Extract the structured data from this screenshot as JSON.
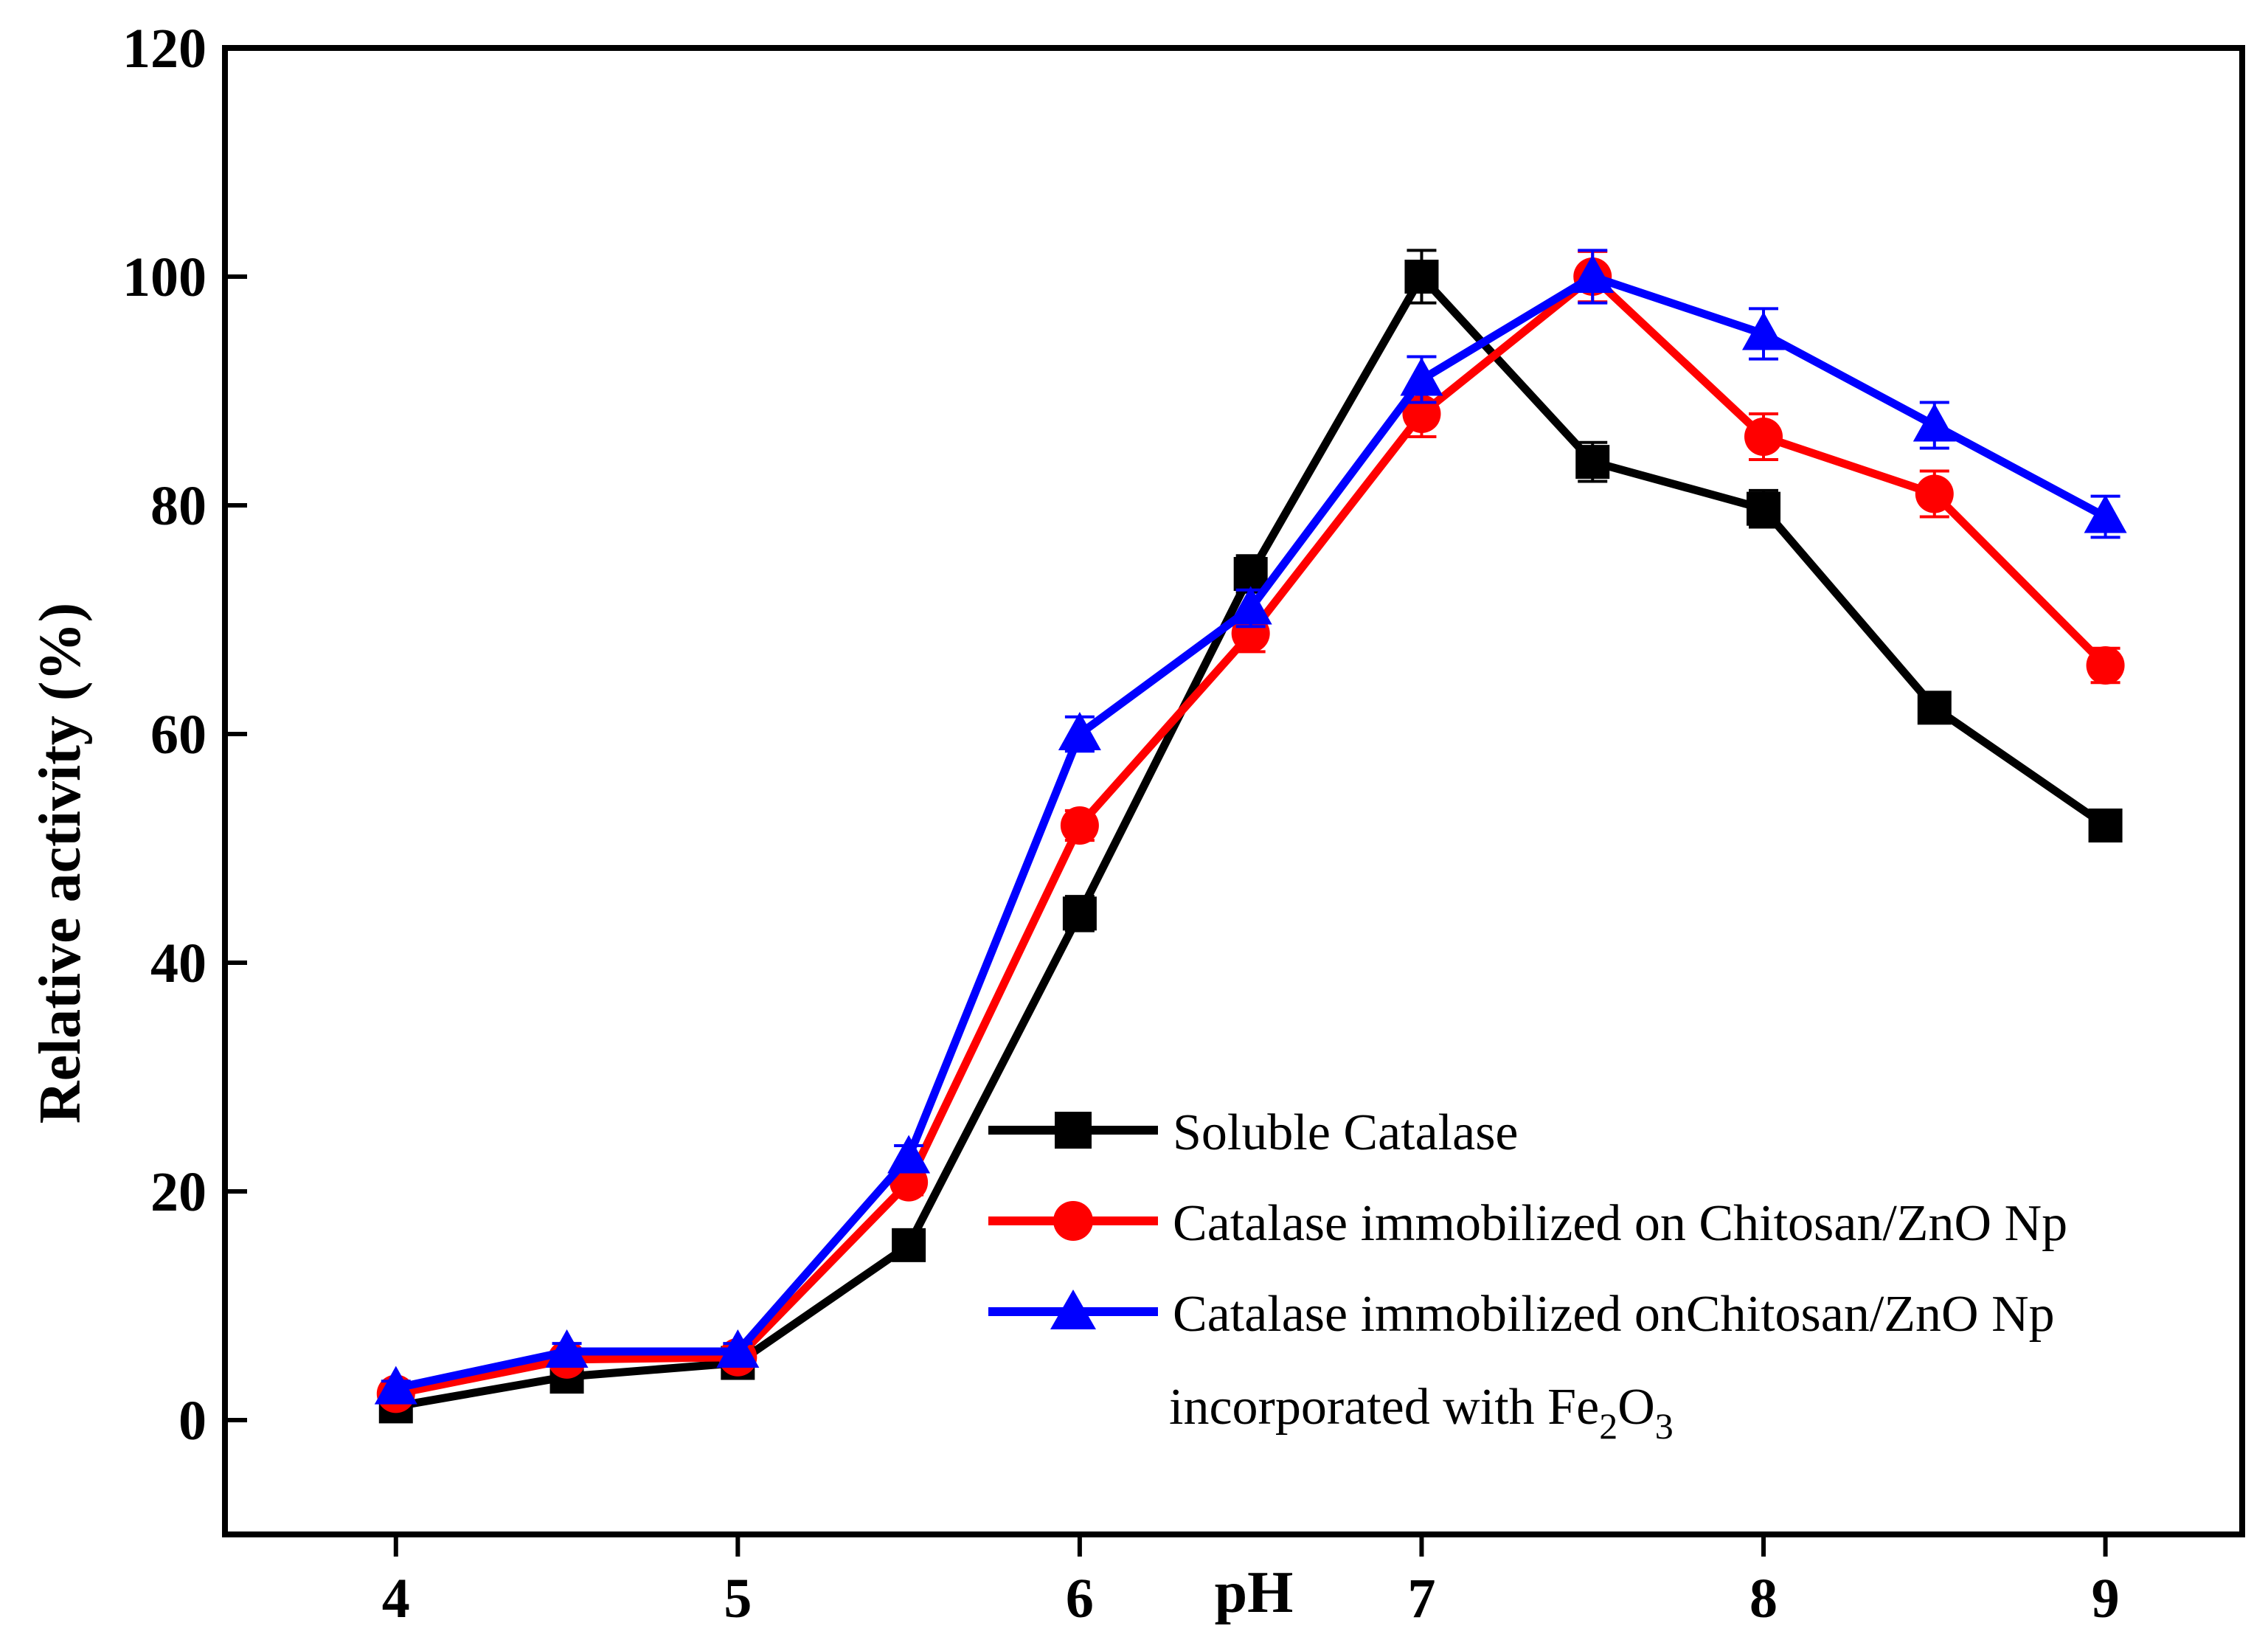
{
  "chart_data": {
    "type": "line",
    "title": "",
    "xlabel": "pH",
    "ylabel": "Relative activity (%)",
    "xlim": [
      3.5,
      9.4
    ],
    "ylim": [
      -10,
      120
    ],
    "x_ticks": [
      4,
      5,
      6,
      7,
      8,
      9
    ],
    "x_tick_labels": [
      "4",
      "5",
      "6",
      "7",
      "8",
      "9"
    ],
    "y_ticks": [
      0,
      20,
      40,
      60,
      80,
      100,
      120
    ],
    "y_tick_labels": [
      "0",
      "20",
      "40",
      "60",
      "80",
      "100",
      "120"
    ],
    "x": [
      4,
      4.5,
      5,
      5.5,
      6,
      6.5,
      7,
      7.5,
      8,
      8.5,
      9
    ],
    "legend_position": "bottom-right",
    "series": [
      {
        "name": "Soluble Catalase",
        "color": "#000000",
        "marker": "square",
        "values": [
          1.2,
          3.8,
          5.0,
          15.3,
          44.3,
          74.0,
          100.0,
          83.8,
          79.7,
          62.3,
          52.0
        ],
        "errors": [
          0.6,
          0.8,
          0.8,
          1.0,
          1.5,
          1.6,
          2.3,
          1.7,
          1.6,
          1.3,
          1.0
        ]
      },
      {
        "name": "Catalase immobilized on Chitosan/ZnO Np",
        "color": "#ff0000",
        "marker": "circle",
        "values": [
          2.3,
          5.3,
          5.5,
          20.8,
          52.0,
          68.8,
          88.0,
          100.0,
          86.0,
          81.0,
          66.0
        ],
        "errors": [
          0.6,
          0.7,
          0.8,
          1.1,
          1.3,
          1.6,
          2.0,
          2.2,
          2.0,
          2.0,
          1.5
        ]
      },
      {
        "name": "Catalase immobilized onChitosan/ZnO Np",
        "name_line2_prefix": "incorporated with Fe",
        "name_sub1": "2",
        "name_mid": "O",
        "name_sub2": "3",
        "color": "#0000ff",
        "marker": "triangle",
        "values": [
          2.8,
          6.0,
          6.0,
          23.0,
          60.0,
          71.0,
          91.0,
          100.0,
          95.0,
          87.0,
          79.0
        ],
        "errors": [
          0.6,
          0.7,
          0.7,
          1.0,
          1.5,
          1.6,
          2.0,
          2.3,
          2.2,
          2.0,
          1.8
        ]
      }
    ]
  }
}
